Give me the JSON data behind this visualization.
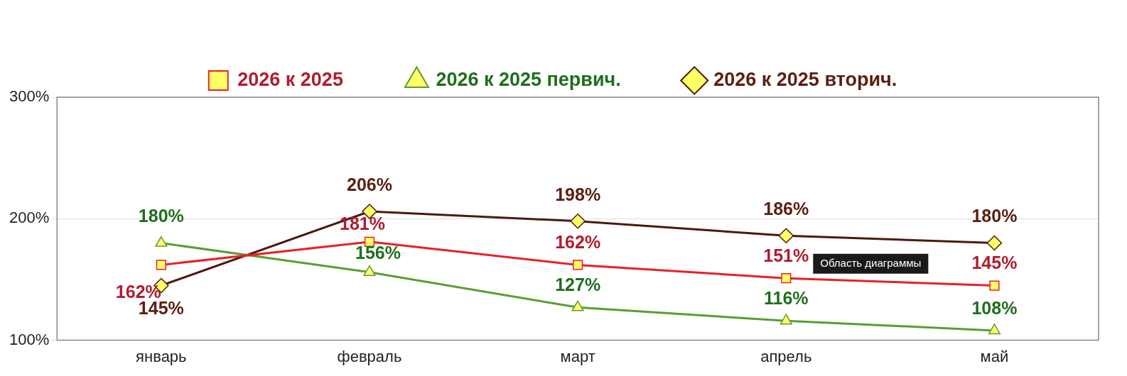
{
  "chart_data": {
    "type": "line",
    "categories": [
      "январь",
      "февраль",
      "март",
      "апрель",
      "май"
    ],
    "series": [
      {
        "name": "2026 к 2025",
        "color": "#e8202a",
        "marker": "square",
        "values": [
          162,
          181,
          162,
          151,
          145
        ],
        "value_labels": [
          "162%",
          "181%",
          "162%",
          "151%",
          "145%"
        ]
      },
      {
        "name": "2026 к 2025 первич.",
        "color": "#5a9e32",
        "marker": "triangle",
        "values": [
          180,
          156,
          127,
          116,
          108
        ],
        "value_labels": [
          "180%",
          "156%",
          "127%",
          "116%",
          "108%"
        ]
      },
      {
        "name": "2026 к 2025 вторич.",
        "color": "#4a1a10",
        "marker": "diamond",
        "values": [
          145,
          206,
          198,
          186,
          180
        ],
        "value_labels": [
          "145%",
          "206%",
          "198%",
          "186%",
          "180%"
        ]
      }
    ],
    "ylim": [
      100,
      300
    ],
    "yticks": [
      {
        "value": 100,
        "label": "100%"
      },
      {
        "value": 200,
        "label": "200%"
      },
      {
        "value": 300,
        "label": "300%"
      }
    ],
    "grid": "y",
    "legend": "top",
    "annotations": [
      "Область диаграммы"
    ]
  }
}
